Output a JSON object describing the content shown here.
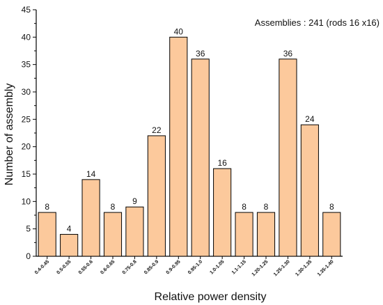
{
  "chart_data": {
    "type": "bar",
    "title": "",
    "annotation": "Assemblies : 241 (rods 16 x16)",
    "xlabel": "Relative power density",
    "ylabel": "Number of assembly",
    "categories": [
      "0.4-0.45",
      "0.5-0.55",
      "0.55-0.6",
      "0.6-0.65",
      "0.75-0.8",
      "0.85-0.9",
      "0.9-0.95",
      "0.95-1.0",
      "1.0-1.05",
      "1.1-1.15",
      "1.20-1.25",
      "1.25-1.30",
      "1.30-1.35",
      "1.35-1.40"
    ],
    "values": [
      8,
      4,
      14,
      8,
      9,
      22,
      40,
      36,
      16,
      8,
      8,
      36,
      24,
      8
    ],
    "data_labels": [
      "8",
      "4",
      "14",
      "8",
      "9",
      "22",
      "40",
      "36",
      "16",
      "8",
      "8",
      "36",
      "24",
      "8"
    ],
    "ylim": [
      0,
      45
    ],
    "yticks": [
      0,
      5,
      10,
      15,
      20,
      25,
      30,
      35,
      40,
      45
    ],
    "grid": false,
    "legend": "none",
    "bar_color": "#FCC99C",
    "bar_edge_color": "#000000"
  }
}
